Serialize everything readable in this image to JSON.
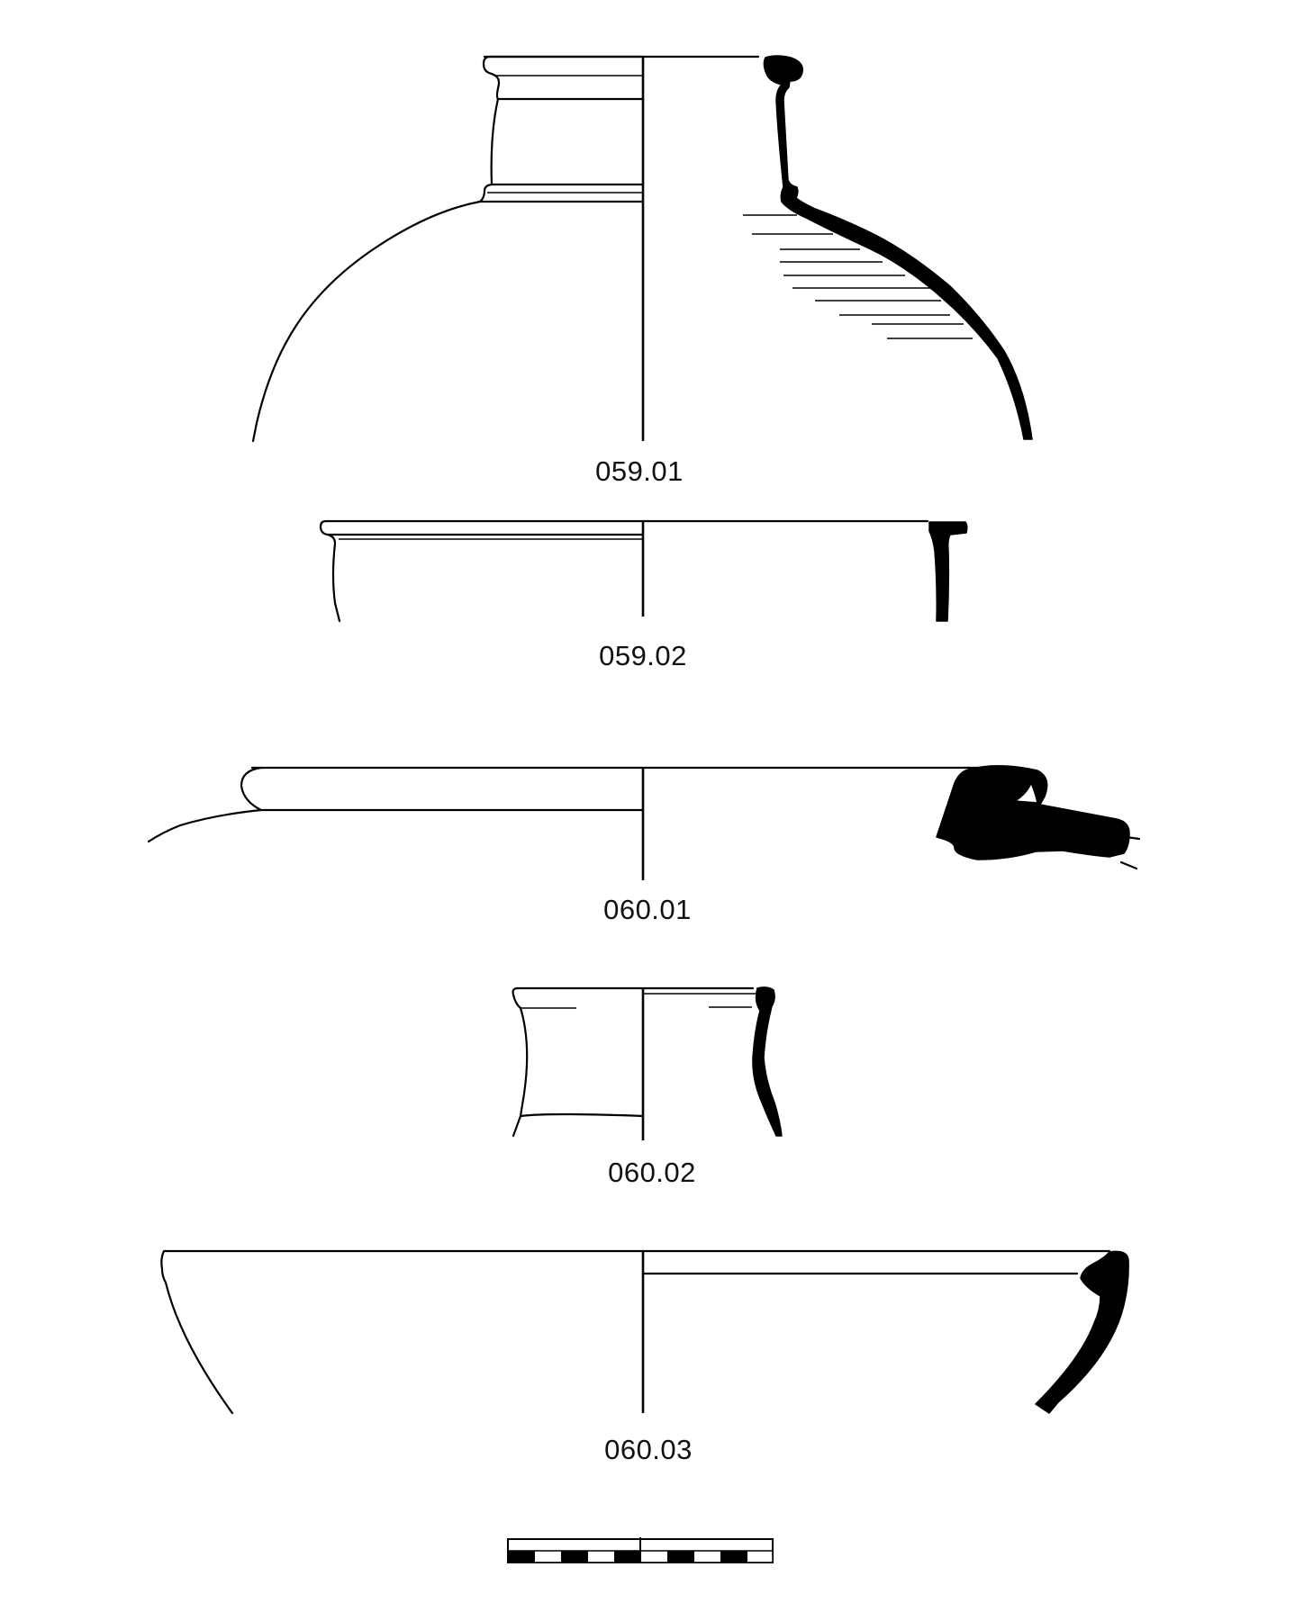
{
  "figure": {
    "background": "#ffffff",
    "ink": "#000000",
    "vessels": [
      {
        "id": "059.01",
        "label": "059.01",
        "form": "jar with collared neck and rounded body"
      },
      {
        "id": "059.02",
        "label": "059.02",
        "form": "jar rim"
      },
      {
        "id": "060.01",
        "label": "060.01",
        "form": "wide-mouthed vessel with rolled rim"
      },
      {
        "id": "060.02",
        "label": "060.02",
        "form": "short flaring neck"
      },
      {
        "id": "060.03",
        "label": "060.03",
        "form": "open bowl"
      }
    ],
    "scale_bar": {
      "segments": 10,
      "colors": [
        "#000000",
        "#ffffff"
      ]
    }
  }
}
